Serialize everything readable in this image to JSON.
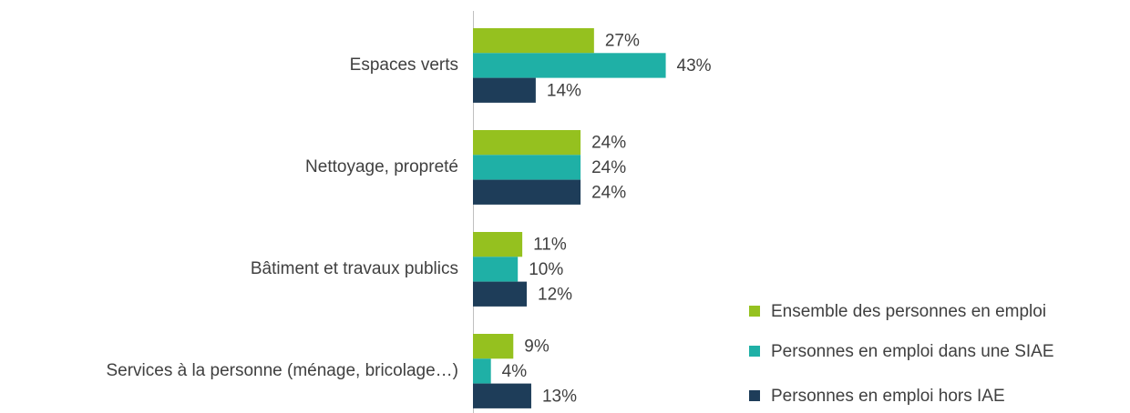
{
  "chart_data": {
    "type": "hbar",
    "categories": [
      "Espaces verts",
      "Nettoyage, propreté",
      "Bâtiment et travaux publics",
      "Services à la personne (ménage, bricolage…)"
    ],
    "series": [
      {
        "name": "Ensemble des personnes en emploi",
        "color": "#95c11f",
        "values": [
          27,
          24,
          11,
          9
        ],
        "value_labels": [
          "27%",
          "24%",
          "11%",
          "9%"
        ]
      },
      {
        "name": "Personnes en emploi dans une SIAE",
        "color": "#1fb0a6",
        "values": [
          43,
          24,
          10,
          4
        ],
        "value_labels": [
          "43%",
          "24%",
          "10%",
          "4%"
        ]
      },
      {
        "name": "Personnes en emploi hors IAE",
        "color": "#1e3d59",
        "values": [
          14,
          24,
          12,
          13
        ],
        "value_labels": [
          "14%",
          "24%",
          "12%",
          "13%"
        ]
      }
    ],
    "xlim": [
      0,
      100
    ]
  }
}
